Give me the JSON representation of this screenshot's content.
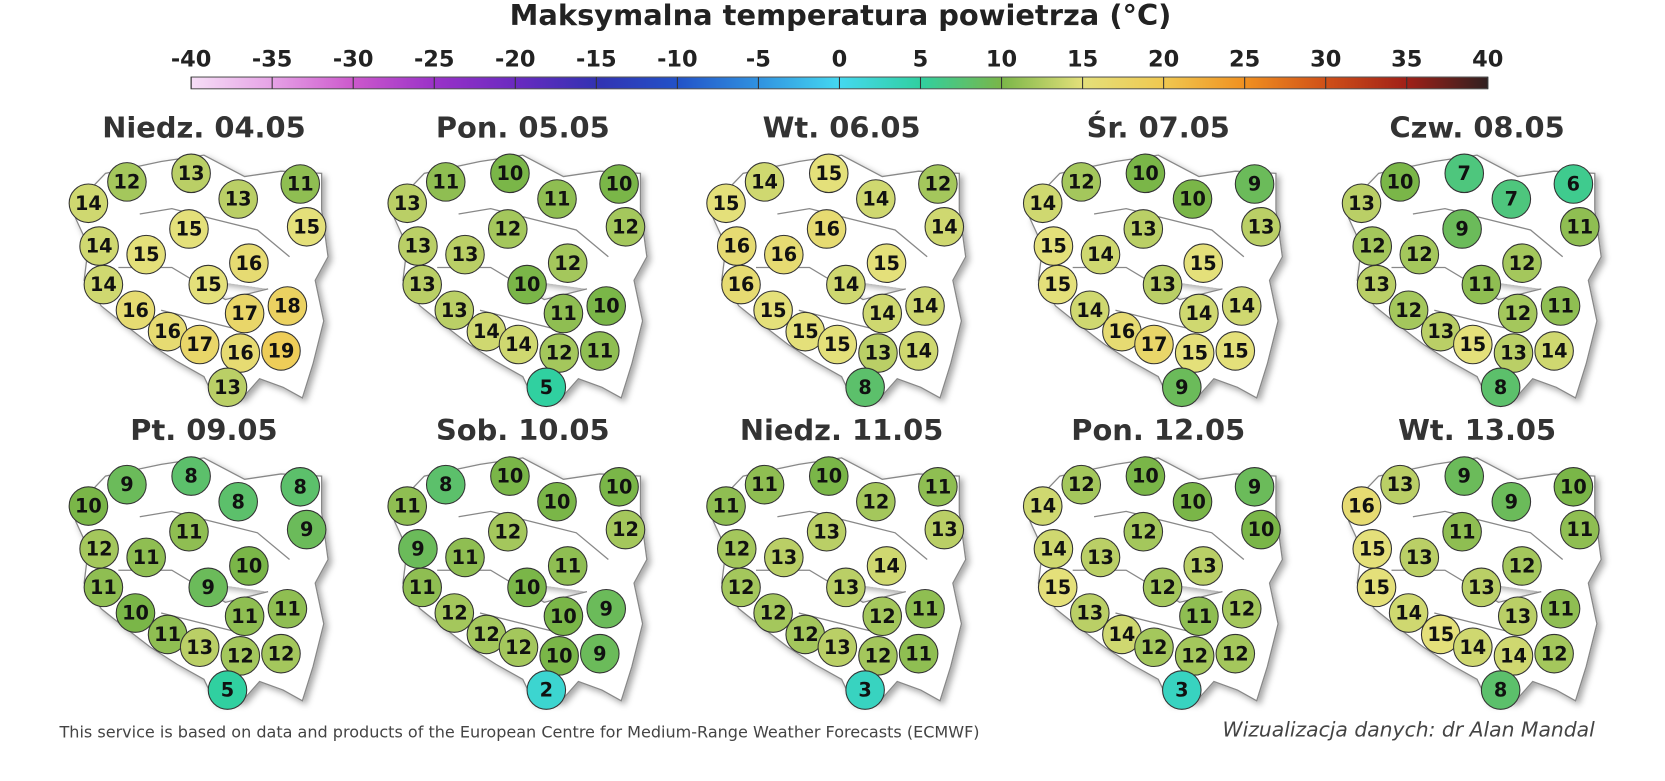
{
  "title": "Maksymalna temperatura powietrza (°C)",
  "scale": {
    "ticks": [
      -40,
      -35,
      -30,
      -25,
      -20,
      -15,
      -10,
      -5,
      0,
      5,
      10,
      15,
      20,
      25,
      30,
      35,
      40
    ]
  },
  "days": [
    {
      "label": "Niedz. 04.05",
      "values": [
        14,
        12,
        13,
        13,
        11,
        15,
        14,
        15,
        15,
        16,
        14,
        15,
        16,
        16,
        18,
        17,
        17,
        16,
        19,
        13
      ]
    },
    {
      "label": "Pon. 05.05",
      "values": [
        13,
        11,
        10,
        11,
        10,
        12,
        13,
        13,
        12,
        12,
        13,
        10,
        13,
        14,
        10,
        11,
        14,
        12,
        11,
        5
      ]
    },
    {
      "label": "Wt. 06.05",
      "values": [
        15,
        14,
        15,
        14,
        12,
        14,
        16,
        16,
        16,
        15,
        16,
        14,
        15,
        15,
        14,
        14,
        15,
        13,
        14,
        8
      ]
    },
    {
      "label": "Śr. 07.05",
      "values": [
        14,
        12,
        10,
        10,
        9,
        13,
        15,
        14,
        13,
        15,
        15,
        13,
        14,
        16,
        14,
        14,
        17,
        15,
        15,
        9
      ]
    },
    {
      "label": "Czw. 08.05",
      "values": [
        13,
        10,
        7,
        7,
        6,
        11,
        12,
        12,
        9,
        12,
        13,
        11,
        12,
        13,
        11,
        12,
        15,
        13,
        14,
        8
      ]
    },
    {
      "label": "Pt. 09.05",
      "values": [
        10,
        9,
        8,
        8,
        8,
        9,
        12,
        11,
        11,
        10,
        11,
        9,
        10,
        11,
        11,
        11,
        13,
        12,
        12,
        5
      ]
    },
    {
      "label": "Sob. 10.05",
      "values": [
        11,
        8,
        10,
        10,
        10,
        12,
        9,
        11,
        12,
        11,
        11,
        10,
        12,
        12,
        9,
        10,
        12,
        10,
        9,
        2
      ]
    },
    {
      "label": "Niedz. 11.05",
      "values": [
        11,
        11,
        10,
        12,
        11,
        13,
        12,
        13,
        13,
        14,
        12,
        13,
        12,
        12,
        11,
        12,
        13,
        12,
        11,
        3
      ]
    },
    {
      "label": "Pon. 12.05",
      "values": [
        14,
        12,
        10,
        10,
        9,
        10,
        14,
        13,
        12,
        13,
        15,
        12,
        13,
        14,
        12,
        11,
        12,
        12,
        12,
        3
      ]
    },
    {
      "label": "Wt. 13.05",
      "values": [
        16,
        13,
        9,
        9,
        10,
        11,
        15,
        13,
        11,
        12,
        15,
        13,
        14,
        15,
        11,
        13,
        14,
        14,
        12,
        8
      ]
    }
  ],
  "footer": {
    "source": "This service is based on data and products of the European Centre for Medium-Range Weather Forecasts (ECMWF)",
    "credit": "Wizualizacja danych: dr Alan Mandal"
  }
}
